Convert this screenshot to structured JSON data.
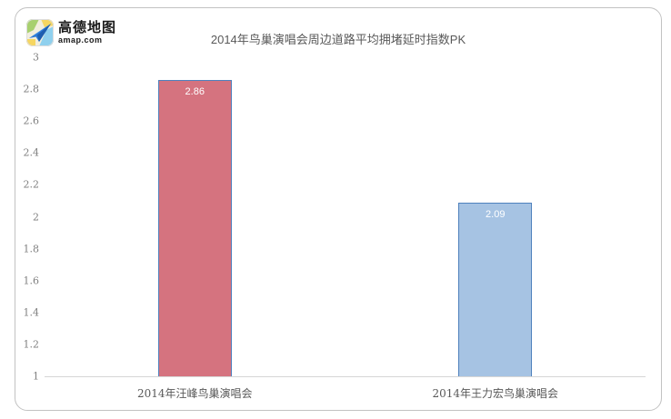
{
  "brand": {
    "name_cn": "高德地图",
    "domain": "amap.com"
  },
  "chart_data": {
    "type": "bar",
    "title": "2014年鸟巢演唱会周边道路平均拥堵延时指数PK",
    "categories": [
      "2014年汪峰鸟巢演唱会",
      "2014年王力宏鸟巢演唱会"
    ],
    "values": [
      2.86,
      2.09
    ],
    "value_labels": [
      "2.86",
      "2.09"
    ],
    "series": [
      {
        "name": "2014年汪峰鸟巢演唱会",
        "value": 2.86
      },
      {
        "name": "2014年王力宏鸟巢演唱会",
        "value": 2.09
      }
    ],
    "xlabel": "",
    "ylabel": "",
    "ylim": [
      1,
      3
    ],
    "yticks": [
      "3",
      "2.8",
      "2.6",
      "2.4",
      "2.2",
      "2",
      "1.8",
      "1.6",
      "1.4",
      "1.2",
      "1"
    ],
    "grid": false,
    "legend": "none",
    "bar_colors": [
      "#d5737f",
      "#a6c3e3"
    ],
    "bar_border_color": "#4f81bd",
    "value_label_color": "#ffffff",
    "axis_line_color": "#d6d6d6",
    "tick_label_color": "#7f7f7f",
    "title_color": "#595959"
  }
}
